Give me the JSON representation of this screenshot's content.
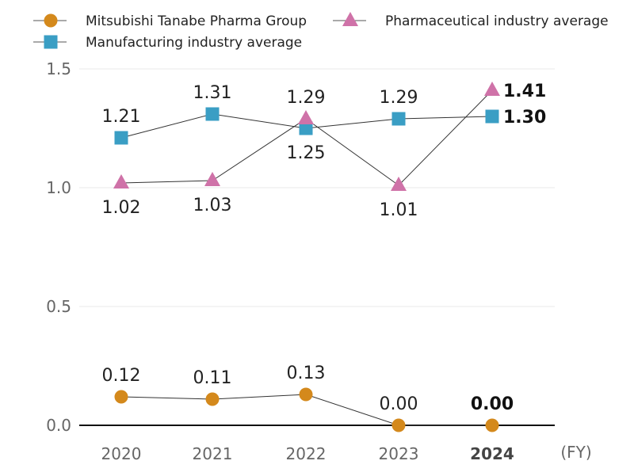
{
  "chart_data": {
    "type": "line",
    "categories": [
      "2020",
      "2021",
      "2022",
      "2023",
      "2024"
    ],
    "x_unit": "(FY)",
    "ylim": [
      0,
      1.5
    ],
    "yticks": [
      "0.0",
      "0.5",
      "1.0",
      "1.5"
    ],
    "grid": true,
    "legend": "top",
    "series": [
      {
        "name": "Mitsubishi Tanabe Pharma Group",
        "marker": "circle",
        "color": "#D4891C",
        "values": [
          0.12,
          0.11,
          0.13,
          0.0,
          0.0
        ],
        "labels": [
          "0.12",
          "0.11",
          "0.13",
          "0.00",
          "0.00"
        ]
      },
      {
        "name": "Manufacturing industry average",
        "marker": "square",
        "color": "#3A9EC4",
        "values": [
          1.21,
          1.31,
          1.25,
          1.29,
          1.3
        ],
        "labels": [
          "1.21",
          "1.31",
          "1.25",
          "1.29",
          "1.30"
        ]
      },
      {
        "name": "Pharmaceutical industry average",
        "marker": "triangle",
        "color": "#CF72A8",
        "values": [
          1.02,
          1.03,
          1.29,
          1.01,
          1.41
        ],
        "labels": [
          "1.02",
          "1.03",
          "1.29",
          "1.01",
          "1.41"
        ]
      }
    ]
  }
}
